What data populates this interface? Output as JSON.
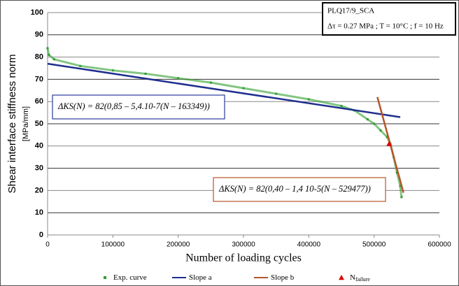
{
  "chart_data": {
    "type": "scatter",
    "y_label": "Shear interface stiffness norm",
    "y_unit": "[MPa/mm]",
    "x_label": "Number of loading cycles",
    "info_box": [
      "PLQ17/9_SCA",
      "Δτ = 0.27 MPa ; T = 10°C ; f = 10 Hz"
    ],
    "annotations": [
      {
        "text": "ΔKS(N) = 82(0,85 – 5,4.10-7(N – 163349))",
        "color": "#2b3a9c"
      },
      {
        "text": "ΔKS(N) = 82(0,40 – 1,4 10-5(N – 529477))",
        "color": "#b5552a"
      }
    ],
    "xlim": [
      0,
      600000
    ],
    "xticks": [
      0,
      100000,
      200000,
      300000,
      400000,
      500000,
      600000
    ],
    "ylim": [
      0,
      100
    ],
    "yticks": [
      0,
      10,
      20,
      30,
      40,
      50,
      60,
      70,
      80,
      90,
      100
    ],
    "grid": true,
    "series": [
      {
        "name": "Exp. curve",
        "color": "#2e9e2e",
        "marker": "dot",
        "x": [
          0,
          2000,
          10000,
          50000,
          100000,
          150000,
          200000,
          250000,
          300000,
          350000,
          400000,
          450000,
          470000,
          490000,
          500000,
          510000,
          520000,
          525000,
          530000,
          535000,
          540000,
          542000
        ],
        "values": [
          84,
          81,
          79,
          76,
          74,
          72.5,
          70.5,
          68.5,
          66,
          63.5,
          61,
          58,
          56,
          52,
          50,
          47,
          44,
          41,
          35,
          28,
          22,
          17
        ]
      },
      {
        "name": "Slope a",
        "color": "#1f2f8f",
        "marker": "line",
        "x": [
          0,
          540000
        ],
        "values": [
          77,
          53
        ]
      },
      {
        "name": "Slope b",
        "color": "#b5552a",
        "marker": "line",
        "x": [
          505000,
          545000
        ],
        "values": [
          62,
          19
        ]
      },
      {
        "name": "N",
        "name_subscript": "failure",
        "color": "#e00000",
        "marker": "triangle",
        "x": [
          523000
        ],
        "values": [
          41
        ]
      }
    ]
  }
}
